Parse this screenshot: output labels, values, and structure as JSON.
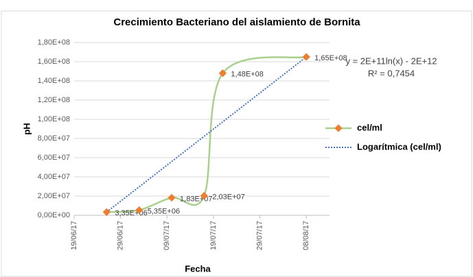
{
  "chart_data": {
    "type": "line",
    "title": "Crecimiento Bacteriano del aislamiento de Bornita",
    "xlabel": "Fecha",
    "ylabel": "pH",
    "x": [
      "2017-06-26",
      "2017-07-03",
      "2017-07-10",
      "2017-07-17",
      "2017-07-21",
      "2017-08-08"
    ],
    "series": [
      {
        "name": "cel/ml",
        "color": "#a9d18e",
        "marker_color": "#ed7d31",
        "values": [
          3350000,
          5350000,
          18300000,
          20300000,
          148000000,
          165000000
        ],
        "value_labels": [
          "3,35E+06",
          "5,35E+06",
          "1,83E+07",
          "2,03E+07",
          "1,48E+08",
          "1,65E+08"
        ]
      }
    ],
    "trendline": {
      "name": "Logarítmica (cel/ml)",
      "color": "#4472c4",
      "equation": "y = 2E+11ln(x) - 2E+12",
      "r_squared": "R² = 0,7454"
    },
    "xlim": [
      "2017-06-19",
      "2017-08-13"
    ],
    "xticks": [
      {
        "value": "2017-06-19",
        "label": "19/06/17"
      },
      {
        "value": "2017-06-29",
        "label": "29/06/17"
      },
      {
        "value": "2017-07-09",
        "label": "09/07/17"
      },
      {
        "value": "2017-07-19",
        "label": "19/07/17"
      },
      {
        "value": "2017-07-29",
        "label": "29/07/17"
      },
      {
        "value": "2017-08-08",
        "label": "08/08/17"
      }
    ],
    "ylim": [
      0,
      180000000
    ],
    "yticks": [
      {
        "value": 0,
        "label": "0,00E+00"
      },
      {
        "value": 20000000,
        "label": "2,00E+07"
      },
      {
        "value": 40000000,
        "label": "4,00E+07"
      },
      {
        "value": 60000000,
        "label": "6,00E+07"
      },
      {
        "value": 80000000,
        "label": "8,00E+07"
      },
      {
        "value": 100000000,
        "label": "1,00E+08"
      },
      {
        "value": 120000000,
        "label": "1,20E+08"
      },
      {
        "value": 140000000,
        "label": "1,40E+08"
      },
      {
        "value": 160000000,
        "label": "1,60E+08"
      },
      {
        "value": 180000000,
        "label": "1,80E+08"
      }
    ],
    "grid": true,
    "legend": "right"
  }
}
